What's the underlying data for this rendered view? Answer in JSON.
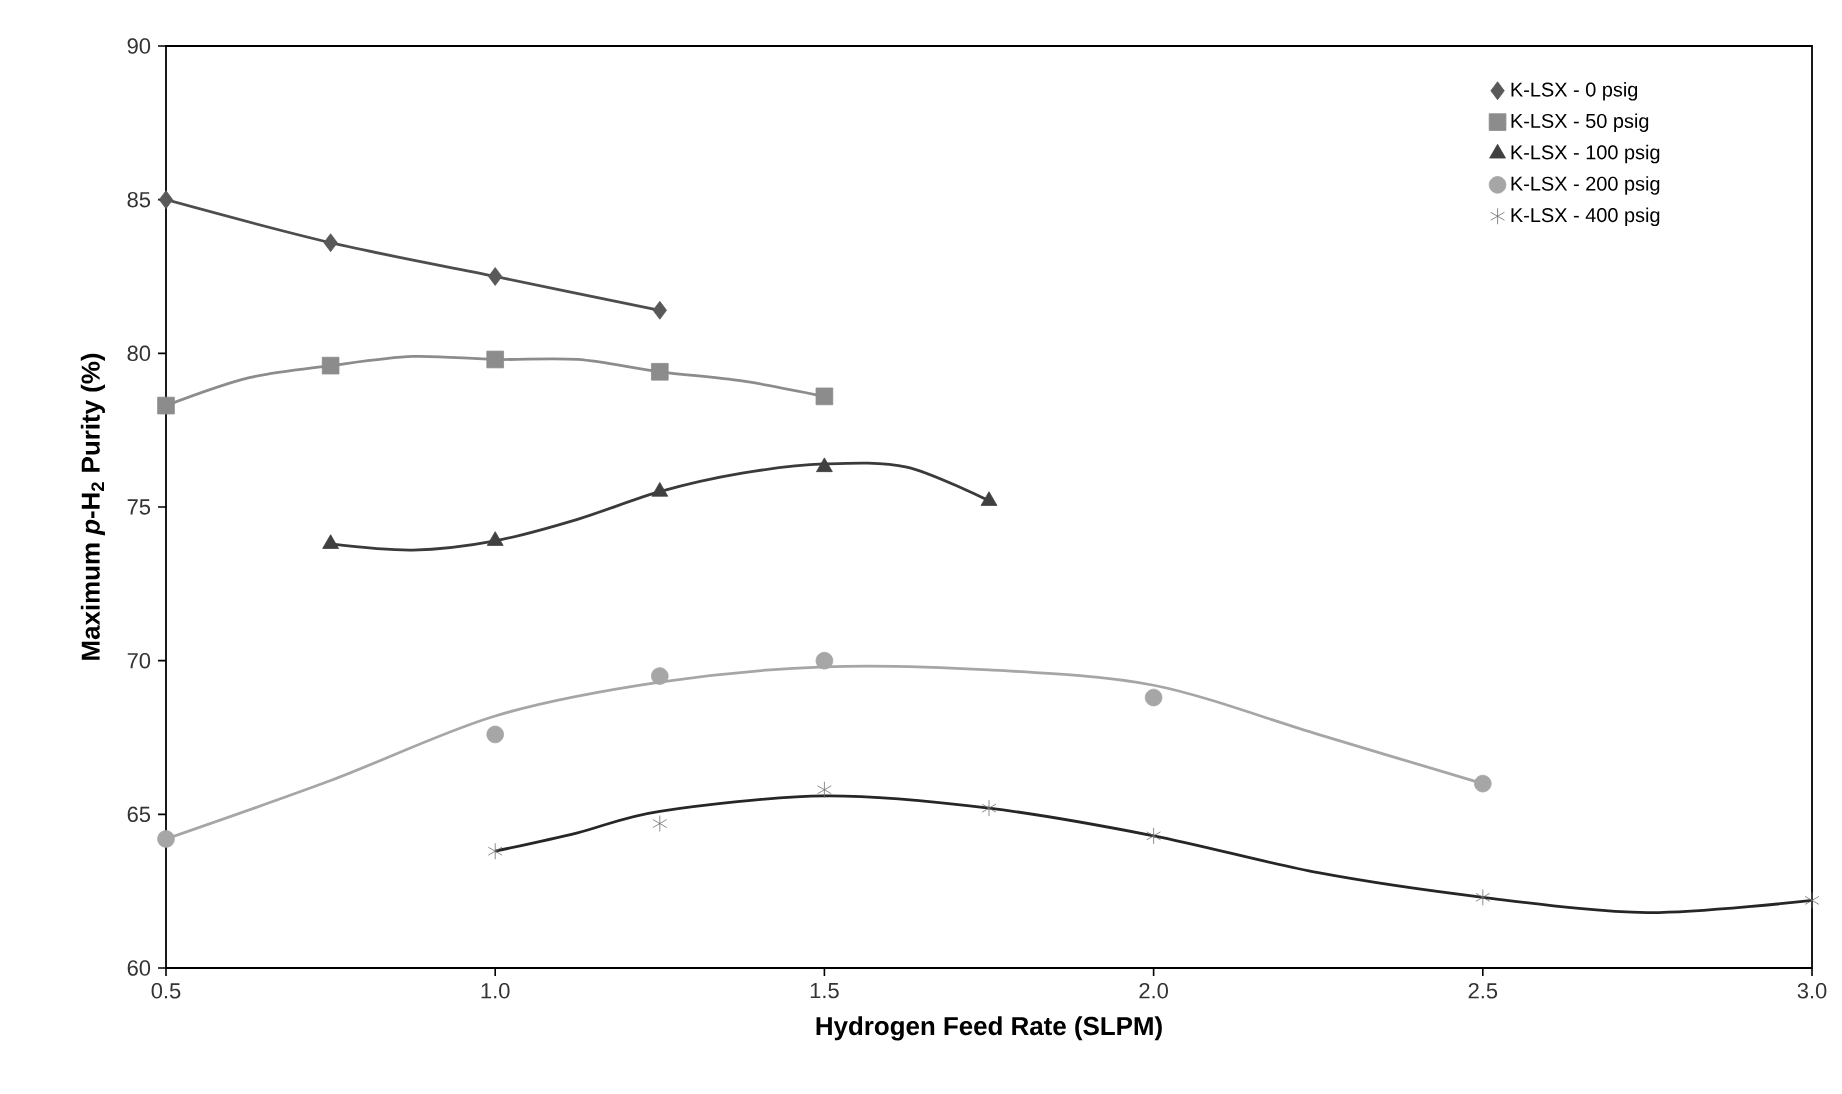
{
  "chart_data": {
    "type": "scatter",
    "xlabel": "Hydrogen Feed Rate (SLPM)",
    "ylabel": "Maximum  *p*-H$_{2}$ Purity (%)",
    "xlim": [
      0.5,
      3.0
    ],
    "ylim": [
      60,
      90
    ],
    "xticks": [
      {
        "value": 0.5,
        "label": "0.5"
      },
      {
        "value": 1.0,
        "label": "1.0"
      },
      {
        "value": 1.5,
        "label": "1.5"
      },
      {
        "value": 2.0,
        "label": "2.0"
      },
      {
        "value": 2.5,
        "label": "2.5"
      },
      {
        "value": 3.0,
        "label": "3.0"
      }
    ],
    "yticks": [
      60,
      65,
      70,
      75,
      80,
      85,
      90
    ],
    "grid": false,
    "legend": "top right",
    "series": [
      {
        "name": "K-LSX - 0 psig",
        "marker": "diamond",
        "color": "#595959",
        "x": [
          0.5,
          0.75,
          1.0,
          1.25
        ],
        "values": [
          85.0,
          83.6,
          82.5,
          81.4
        ]
      },
      {
        "name": "K-LSX - 50 psig",
        "marker": "square",
        "color": "#8c8c8c",
        "x": [
          0.5,
          0.75,
          1.0,
          1.25,
          1.5
        ],
        "values": [
          78.3,
          79.6,
          79.8,
          79.4,
          78.6
        ]
      },
      {
        "name": "K-LSX - 100 psig",
        "marker": "triangle",
        "color": "#404040",
        "x": [
          0.75,
          1.0,
          1.25,
          1.5,
          1.75
        ],
        "values": [
          73.8,
          73.9,
          75.5,
          76.3,
          75.2
        ]
      },
      {
        "name": "K-LSX - 200 psig",
        "marker": "circle",
        "color": "#a6a6a6",
        "x": [
          0.5,
          1.0,
          1.25,
          1.5,
          2.0,
          2.5
        ],
        "values": [
          64.2,
          67.6,
          69.5,
          70.0,
          68.8,
          66.0
        ]
      },
      {
        "name": "K-LSX - 400 psig",
        "marker": "cross",
        "color": "#6e6e6e",
        "x": [
          1.0,
          1.25,
          1.5,
          1.75,
          2.0,
          2.5,
          3.0
        ],
        "values": [
          63.8,
          64.7,
          65.8,
          65.2,
          64.3,
          62.3,
          62.2
        ]
      },
      {
        "type": "line",
        "marker": "none",
        "color": "#4d4d4d",
        "x": [
          0.5,
          0.75,
          1.0,
          1.25
        ],
        "values": [
          85.0,
          83.6,
          82.5,
          81.4
        ]
      },
      {
        "type": "line",
        "marker": "none",
        "color": "#8c8c8c",
        "x": [
          0.5,
          0.625,
          0.75,
          0.875,
          1.0,
          1.125,
          1.25,
          1.375,
          1.5
        ],
        "values": [
          78.3,
          79.2,
          79.6,
          79.9,
          79.8,
          79.8,
          79.4,
          79.1,
          78.6
        ]
      },
      {
        "type": "line",
        "marker": "none",
        "color": "#3a3a3a",
        "x": [
          0.75,
          0.875,
          1.0,
          1.125,
          1.25,
          1.375,
          1.5,
          1.625,
          1.75
        ],
        "values": [
          73.8,
          73.6,
          73.9,
          74.6,
          75.5,
          76.1,
          76.4,
          76.3,
          75.2
        ]
      },
      {
        "type": "line",
        "marker": "none",
        "color": "#a6a6a6",
        "x": [
          0.5,
          0.75,
          1.0,
          1.25,
          1.5,
          1.75,
          2.0,
          2.25,
          2.5
        ],
        "values": [
          64.2,
          66.1,
          68.2,
          69.3,
          69.8,
          69.7,
          69.2,
          67.6,
          66.0
        ]
      },
      {
        "type": "line",
        "marker": "none",
        "color": "#262626",
        "x": [
          1.0,
          1.125,
          1.25,
          1.5,
          1.75,
          2.0,
          2.25,
          2.5,
          2.75,
          3.0
        ],
        "values": [
          63.8,
          64.4,
          65.1,
          65.6,
          65.2,
          64.3,
          63.1,
          62.3,
          61.8,
          62.2
        ]
      }
    ]
  }
}
